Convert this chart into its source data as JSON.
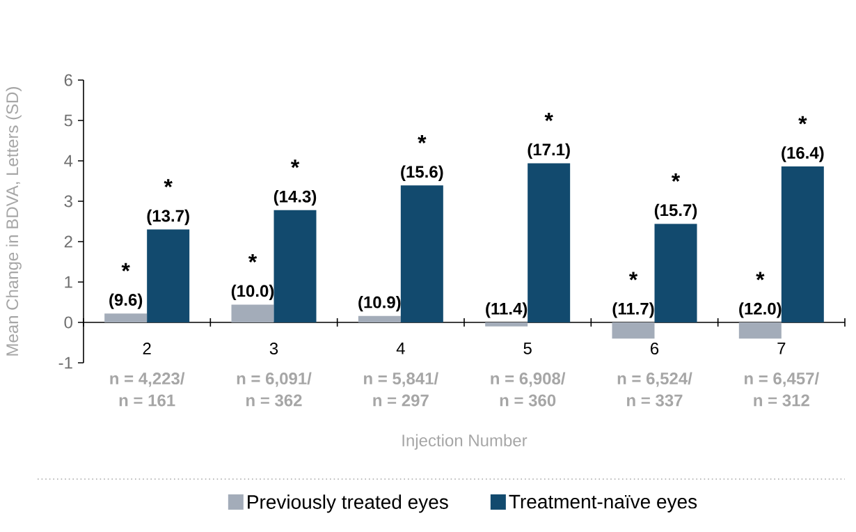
{
  "chart_data": {
    "type": "bar",
    "xlabel": "Injection Number",
    "ylabel": "Mean Change in BDVA, Letters (SD)",
    "categories": [
      "2",
      "3",
      "4",
      "5",
      "6",
      "7"
    ],
    "series": [
      {
        "name": "Previously treated eyes",
        "color": "#a3acb9",
        "values": [
          0.22,
          0.44,
          0.16,
          -0.1,
          -0.4,
          -0.4
        ]
      },
      {
        "name": "Treatment-naïve eyes",
        "color": "#124a6e",
        "values": [
          2.3,
          2.78,
          3.39,
          3.94,
          2.44,
          3.86
        ]
      }
    ],
    "ylim": [
      -1,
      6
    ],
    "yticks": [
      -1,
      0,
      1,
      2,
      3,
      4,
      5,
      6
    ],
    "grid": false,
    "legend": "bottom",
    "annotations": [
      {
        "text": "(9.6)",
        "x": "2",
        "y": 0.22
      },
      {
        "text": "*",
        "x": "2",
        "y": 0.22
      },
      {
        "text": "(13.7)",
        "x": "2",
        "y": 2.3
      },
      {
        "text": "*",
        "x": "2",
        "y": 2.3
      },
      {
        "text": "(10.0)",
        "x": "3",
        "y": 0.44
      },
      {
        "text": "*",
        "x": "3",
        "y": 0.44
      },
      {
        "text": "(14.3)",
        "x": "3",
        "y": 2.78
      },
      {
        "text": "*",
        "x": "3",
        "y": 2.78
      },
      {
        "text": "(10.9)",
        "x": "4",
        "y": 0.16
      },
      {
        "text": "(15.6)",
        "x": "4",
        "y": 3.39
      },
      {
        "text": "*",
        "x": "4",
        "y": 3.39
      },
      {
        "text": "(11.4)",
        "x": "5",
        "y": -0.1
      },
      {
        "text": "(17.1)",
        "x": "5",
        "y": 3.94
      },
      {
        "text": "*",
        "x": "5",
        "y": 3.94
      },
      {
        "text": "(11.7)",
        "x": "6",
        "y": -0.4
      },
      {
        "text": "*",
        "x": "6",
        "y": -0.4
      },
      {
        "text": "(15.7)",
        "x": "6",
        "y": 2.44
      },
      {
        "text": "*",
        "x": "6",
        "y": 2.44
      },
      {
        "text": "(12.0)",
        "x": "7",
        "y": -0.4
      },
      {
        "text": "*",
        "x": "7",
        "y": -0.4
      },
      {
        "text": "(16.4)",
        "x": "7",
        "y": 3.86
      },
      {
        "text": "*",
        "x": "7",
        "y": 3.86
      },
      "n = 4,223/",
      "n = 161",
      "n = 6,091/",
      "n = 362",
      "n = 5,841/",
      "n = 297",
      "n = 6,908/",
      "n = 360",
      "n = 6,524/",
      "n = 337",
      "n = 6,457/",
      "n = 312"
    ]
  }
}
